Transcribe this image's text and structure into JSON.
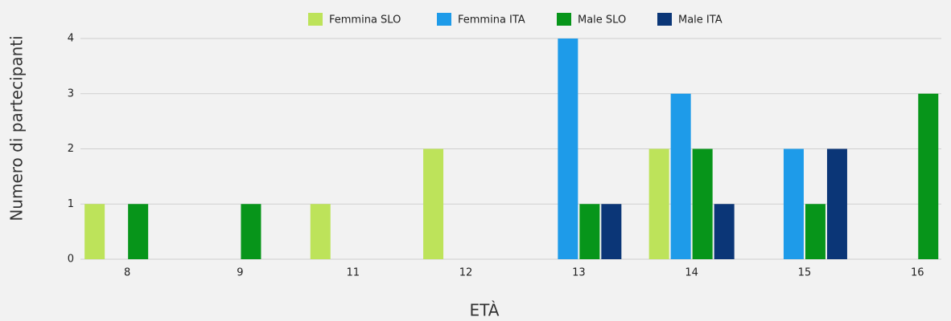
{
  "chart_data": {
    "type": "bar",
    "x_label": "ETÀ",
    "y_label": "Numero di partecipanti",
    "categories": [
      "8",
      "9",
      "11",
      "12",
      "13",
      "14",
      "15",
      "16"
    ],
    "series": [
      {
        "name": "Femmina SLO",
        "color": "#bde35a",
        "values": [
          1,
          0,
          1,
          2,
          0,
          2,
          0,
          0
        ]
      },
      {
        "name": "Femmina ITA",
        "color": "#1e9be9",
        "values": [
          0,
          0,
          0,
          0,
          4,
          3,
          2,
          0
        ]
      },
      {
        "name": "Male SLO",
        "color": "#07951a",
        "values": [
          1,
          1,
          0,
          0,
          1,
          2,
          1,
          3
        ]
      },
      {
        "name": "Male ITA",
        "color": "#0b3677",
        "values": [
          0,
          0,
          0,
          0,
          1,
          1,
          2,
          0
        ]
      }
    ],
    "ylim": [
      0,
      4
    ],
    "yticks": [
      0,
      1,
      2,
      3,
      4
    ],
    "grid": true,
    "legend": "top"
  }
}
